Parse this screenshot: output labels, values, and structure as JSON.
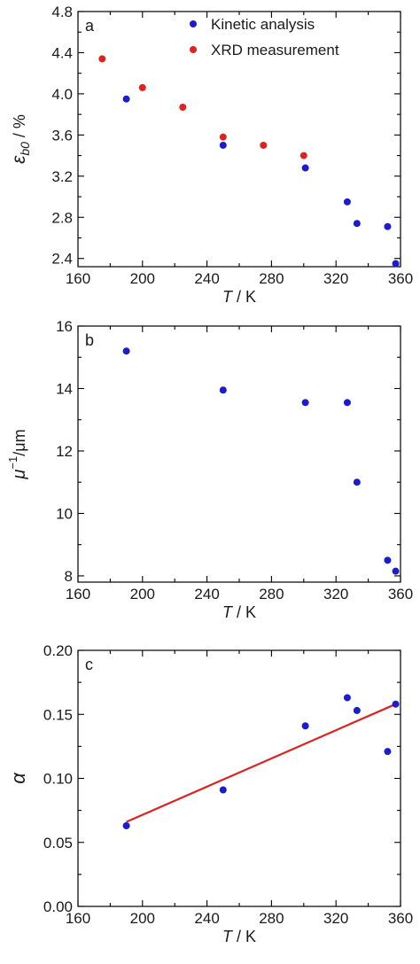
{
  "chart_data": [
    {
      "type": "scatter",
      "panel_label": "a",
      "xlabel": "T / K",
      "ylabel": "ε_b0 / %",
      "xlim": [
        160,
        360
      ],
      "ylim": [
        2.32,
        4.8
      ],
      "xticks": [
        160,
        200,
        240,
        280,
        320,
        360
      ],
      "yticks": [
        2.4,
        2.8,
        3.2,
        3.6,
        4.0,
        4.4,
        4.8
      ],
      "ytick_labels": [
        "2.4",
        "2.8",
        "3.2",
        "3.6",
        "4.0",
        "4.4",
        "4.8"
      ],
      "legend": "top-right",
      "series": [
        {
          "name": "Kinetic analysis",
          "color": "#1c1ccc",
          "x": [
            190,
            250,
            301,
            327,
            333,
            352,
            357
          ],
          "y": [
            3.95,
            3.5,
            3.28,
            2.95,
            2.74,
            2.71,
            2.35
          ]
        },
        {
          "name": "XRD measurement",
          "color": "#dd2222",
          "x": [
            175,
            200,
            225,
            250,
            275,
            300
          ],
          "y": [
            4.34,
            4.06,
            3.87,
            3.58,
            3.5,
            3.4
          ]
        }
      ]
    },
    {
      "type": "scatter",
      "panel_label": "b",
      "xlabel": "T / K",
      "ylabel": "μ⁻¹/μm",
      "xlim": [
        160,
        360
      ],
      "ylim": [
        7.8,
        16
      ],
      "xticks": [
        160,
        200,
        240,
        280,
        320,
        360
      ],
      "yticks": [
        8,
        10,
        12,
        14,
        16
      ],
      "ytick_labels": [
        "8",
        "10",
        "12",
        "14",
        "16"
      ],
      "series": [
        {
          "color": "#1c1ccc",
          "x": [
            190,
            250,
            301,
            327,
            333,
            352,
            357
          ],
          "y": [
            15.2,
            13.95,
            13.55,
            13.55,
            11.0,
            8.5,
            8.15
          ]
        }
      ]
    },
    {
      "type": "scatter",
      "panel_label": "c",
      "xlabel": "T / K",
      "ylabel": "α",
      "xlim": [
        160,
        360
      ],
      "ylim": [
        0,
        0.2
      ],
      "xticks": [
        160,
        200,
        240,
        280,
        320,
        360
      ],
      "yticks": [
        0.0,
        0.05,
        0.1,
        0.15,
        0.2
      ],
      "ytick_labels": [
        "0.00",
        "0.05",
        "0.10",
        "0.15",
        "0.20"
      ],
      "series": [
        {
          "color": "#1c1ccc",
          "x": [
            190,
            250,
            301,
            327,
            333,
            352,
            357
          ],
          "y": [
            0.063,
            0.091,
            0.141,
            0.163,
            0.153,
            0.121,
            0.158
          ]
        }
      ],
      "fit_line": {
        "color": "#dd2222",
        "x": [
          190,
          357
        ],
        "y": [
          0.066,
          0.158
        ]
      }
    }
  ]
}
